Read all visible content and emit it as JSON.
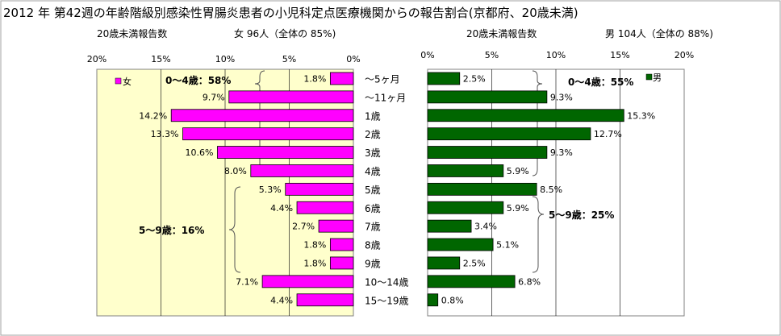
{
  "title": "2012 年 第42週の年齢階級別感染性胃腸炎患者の小児科定点医療機関からの報告割合(京都府、20歳未満)",
  "female_header": {
    "left": "20歳未満報告数",
    "right": "女 96人（全体の 85%)"
  },
  "male_header": {
    "left": "20歳未満報告数",
    "right": "男 104人（全体の 88%)"
  },
  "annotations": {
    "female_0_4": "0～4歳：58%",
    "female_5_9": "5～9歳：16%",
    "male_0_4": "0～4歳：55%",
    "male_5_9": "5～9歳：25%"
  },
  "colors": {
    "female": "#ff00ff",
    "male": "#006600",
    "female_bg": "#ffffcc"
  },
  "chart_data": [
    {
      "type": "bar",
      "orientation": "horizontal",
      "direction": "right-to-left",
      "categories": [
        "～5ヶ月",
        "～11ヶ月",
        "1歳",
        "2歳",
        "3歳",
        "4歳",
        "5歳",
        "6歳",
        "7歳",
        "8歳",
        "9歳",
        "10～14歳",
        "15～19歳"
      ],
      "series": [
        {
          "name": "女",
          "values": [
            1.8,
            9.7,
            14.2,
            13.3,
            10.6,
            8.0,
            5.3,
            4.4,
            2.7,
            1.8,
            1.8,
            7.1,
            4.4
          ]
        }
      ],
      "data_labels": [
        "1.8%",
        "9.7%",
        "14.2%",
        "13.3%",
        "10.6%",
        "8.0%",
        "5.3%",
        "4.4%",
        "2.7%",
        "1.8%",
        "1.8%",
        "7.1%",
        "4.4%"
      ],
      "xlim": [
        0,
        20
      ],
      "ticks": [
        "0%",
        "5%",
        "10%",
        "15%",
        "20%"
      ],
      "legend": "top-left",
      "grid": true
    },
    {
      "type": "bar",
      "orientation": "horizontal",
      "direction": "left-to-right",
      "categories": [
        "～5ヶ月",
        "～11ヶ月",
        "1歳",
        "2歳",
        "3歳",
        "4歳",
        "5歳",
        "6歳",
        "7歳",
        "8歳",
        "9歳",
        "10～14歳",
        "15～19歳"
      ],
      "series": [
        {
          "name": "男",
          "values": [
            2.5,
            9.3,
            15.3,
            12.7,
            9.3,
            5.9,
            8.5,
            5.9,
            3.4,
            5.1,
            2.5,
            6.8,
            0.8
          ]
        }
      ],
      "data_labels": [
        "2.5%",
        "9.3%",
        "15.3%",
        "12.7%",
        "9.3%",
        "5.9%",
        "8.5%",
        "5.9%",
        "3.4%",
        "5.1%",
        "2.5%",
        "6.8%",
        "0.8%"
      ],
      "xlim": [
        0,
        20
      ],
      "ticks": [
        "0%",
        "5%",
        "10%",
        "15%",
        "20%"
      ],
      "legend": "top-right",
      "grid": true
    }
  ]
}
